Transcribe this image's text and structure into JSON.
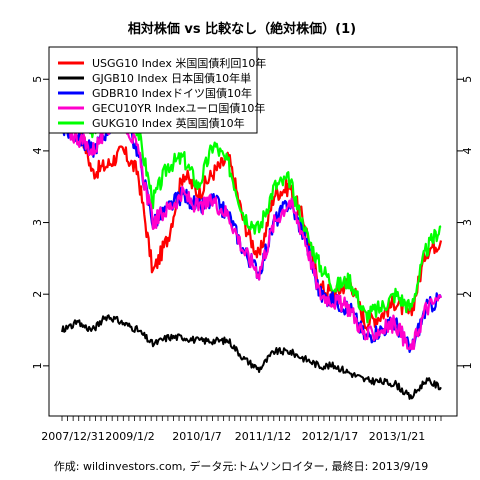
{
  "chart_data": {
    "type": "line",
    "title": "相対株価 vs 比較なし（絶対株価）(1)",
    "caption": "作成: wildinvestors.com, データ元:トムソンロイター, 最終日: 2013/9/19",
    "xlabel": "",
    "ylabel": "",
    "x_tick_labels": [
      "2007/12/31",
      "2009/1/2",
      "2010/1/7",
      "2011/1/12",
      "2012/1/17",
      "2013/1/21"
    ],
    "y_ticks": [
      1,
      2,
      3,
      4,
      5
    ],
    "ylim": [
      0.3,
      5.45
    ],
    "legend_position": "top-left",
    "grid": false,
    "x": [
      "2007-07",
      "2007-10",
      "2008-01",
      "2008-04",
      "2008-07",
      "2008-10",
      "2009-01",
      "2009-04",
      "2009-07",
      "2009-10",
      "2010-01",
      "2010-04",
      "2010-07",
      "2010-10",
      "2011-01",
      "2011-04",
      "2011-07",
      "2011-10",
      "2012-01",
      "2012-04",
      "2012-07",
      "2012-10",
      "2013-01",
      "2013-04",
      "2013-07",
      "2013-09"
    ],
    "series": [
      {
        "name": "USGG10 Index 米国国債利回10年",
        "color": "#ff0000",
        "values": [
          4.9,
          4.5,
          3.7,
          3.8,
          4.0,
          3.7,
          2.3,
          2.8,
          3.7,
          3.4,
          3.7,
          3.9,
          3.0,
          2.5,
          3.4,
          3.5,
          3.0,
          2.1,
          2.0,
          2.2,
          1.6,
          1.7,
          1.9,
          1.7,
          2.6,
          2.75
        ]
      },
      {
        "name": "GJGB10 Index 日本国債10年単",
        "color": "#000000",
        "values": [
          1.5,
          1.6,
          1.5,
          1.7,
          1.6,
          1.5,
          1.3,
          1.4,
          1.4,
          1.35,
          1.35,
          1.35,
          1.1,
          0.95,
          1.2,
          1.2,
          1.1,
          1.0,
          1.0,
          0.9,
          0.8,
          0.78,
          0.75,
          0.55,
          0.8,
          0.7
        ]
      },
      {
        "name": "GDBR10 Indexドイツ国債10年",
        "color": "#0000ff",
        "values": [
          4.3,
          4.2,
          4.0,
          4.3,
          4.5,
          4.0,
          3.0,
          3.2,
          3.4,
          3.2,
          3.3,
          3.1,
          2.6,
          2.3,
          3.0,
          3.3,
          2.8,
          2.0,
          1.9,
          1.8,
          1.4,
          1.5,
          1.6,
          1.2,
          1.8,
          1.95
        ]
      },
      {
        "name": "GECU10YR Indexユーロ国債10年",
        "color": "#ff00cc",
        "values": [
          4.3,
          4.2,
          4.0,
          4.3,
          4.5,
          4.0,
          3.0,
          3.2,
          3.4,
          3.2,
          3.3,
          3.1,
          2.6,
          2.3,
          3.0,
          3.3,
          2.8,
          2.0,
          1.9,
          1.8,
          1.4,
          1.5,
          1.6,
          1.2,
          1.8,
          1.95
        ]
      },
      {
        "name": "GUKG10 Index 英国国債10年",
        "color": "#00ff00",
        "values": [
          4.6,
          4.5,
          4.3,
          4.6,
          4.7,
          4.3,
          3.3,
          3.8,
          3.9,
          3.5,
          4.1,
          3.8,
          3.1,
          2.9,
          3.5,
          3.6,
          2.9,
          2.4,
          2.1,
          2.2,
          1.7,
          1.8,
          2.0,
          1.8,
          2.6,
          2.95
        ]
      }
    ]
  }
}
